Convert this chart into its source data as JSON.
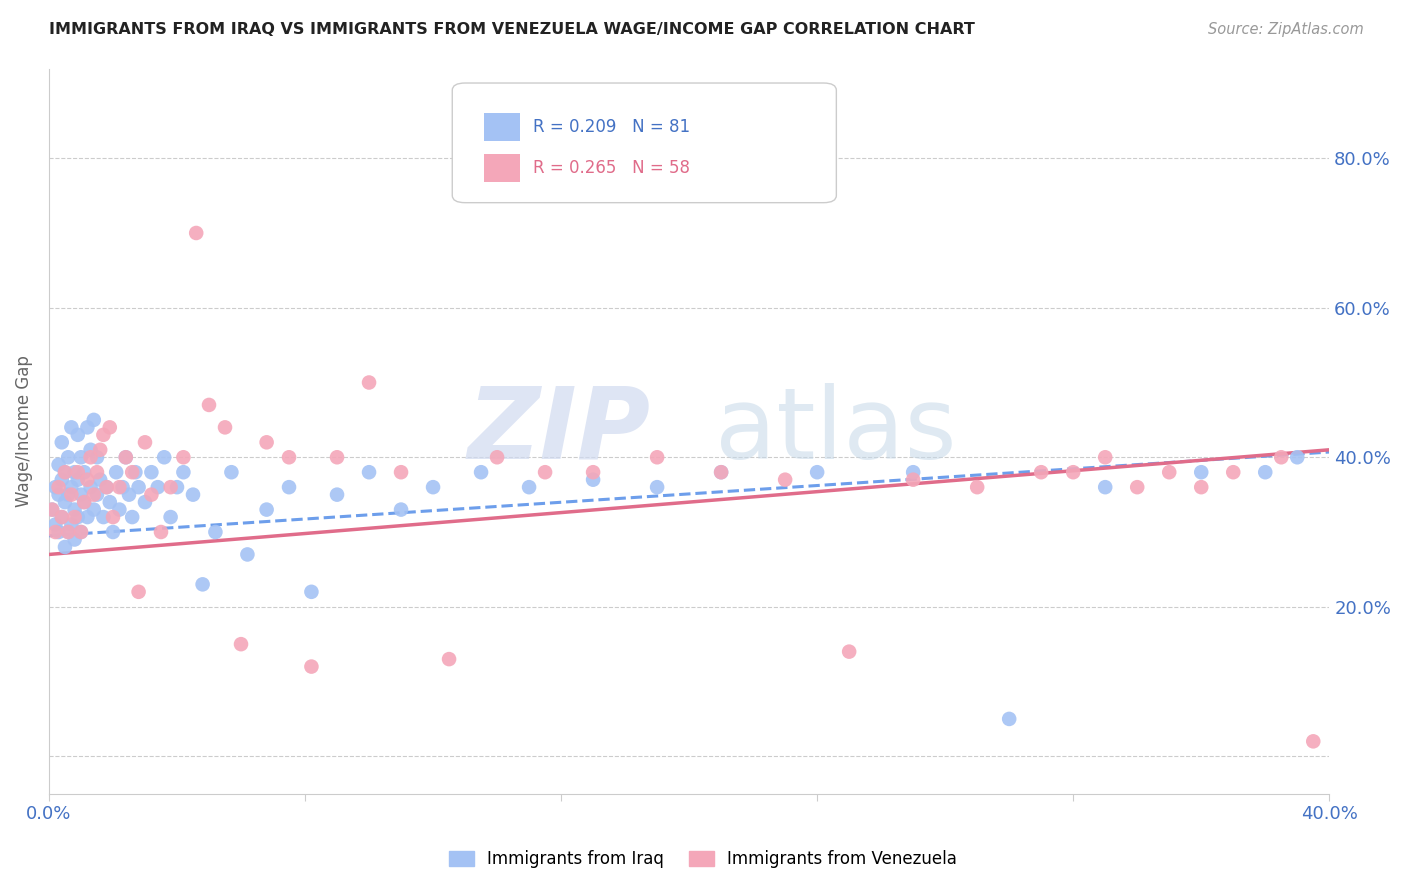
{
  "title": "IMMIGRANTS FROM IRAQ VS IMMIGRANTS FROM VENEZUELA WAGE/INCOME GAP CORRELATION CHART",
  "source": "Source: ZipAtlas.com",
  "ylabel": "Wage/Income Gap",
  "xlim": [
    0.0,
    0.4
  ],
  "ylim": [
    -0.05,
    0.92
  ],
  "xticks": [
    0.0,
    0.08,
    0.16,
    0.24,
    0.32,
    0.4
  ],
  "xticklabels": [
    "0.0%",
    "",
    "",
    "",
    "",
    "40.0%"
  ],
  "yticks": [
    0.0,
    0.2,
    0.4,
    0.6,
    0.8
  ],
  "yticklabels": [
    "",
    "20.0%",
    "40.0%",
    "60.0%",
    "80.0%"
  ],
  "iraq_R": 0.209,
  "iraq_N": 81,
  "venezuela_R": 0.265,
  "venezuela_N": 58,
  "iraq_color": "#a4c2f4",
  "venezuela_color": "#f4a7b9",
  "iraq_line_color": "#6d9eeb",
  "venezuela_line_color": "#e06c8a",
  "ytick_color": "#4472c4",
  "xtick_color": "#4472c4",
  "iraq_x": [
    0.001,
    0.002,
    0.002,
    0.003,
    0.003,
    0.003,
    0.004,
    0.004,
    0.004,
    0.005,
    0.005,
    0.005,
    0.006,
    0.006,
    0.006,
    0.007,
    0.007,
    0.007,
    0.008,
    0.008,
    0.008,
    0.009,
    0.009,
    0.009,
    0.01,
    0.01,
    0.01,
    0.011,
    0.011,
    0.012,
    0.012,
    0.013,
    0.013,
    0.014,
    0.014,
    0.015,
    0.015,
    0.016,
    0.017,
    0.018,
    0.019,
    0.02,
    0.021,
    0.022,
    0.023,
    0.024,
    0.025,
    0.026,
    0.027,
    0.028,
    0.03,
    0.032,
    0.034,
    0.036,
    0.038,
    0.04,
    0.042,
    0.045,
    0.048,
    0.052,
    0.057,
    0.062,
    0.068,
    0.075,
    0.082,
    0.09,
    0.1,
    0.11,
    0.12,
    0.135,
    0.15,
    0.17,
    0.19,
    0.21,
    0.24,
    0.27,
    0.3,
    0.33,
    0.36,
    0.38,
    0.39
  ],
  "iraq_y": [
    0.33,
    0.31,
    0.36,
    0.3,
    0.35,
    0.39,
    0.32,
    0.37,
    0.42,
    0.28,
    0.34,
    0.38,
    0.3,
    0.35,
    0.4,
    0.31,
    0.36,
    0.44,
    0.29,
    0.33,
    0.38,
    0.32,
    0.37,
    0.43,
    0.3,
    0.35,
    0.4,
    0.34,
    0.38,
    0.32,
    0.44,
    0.36,
    0.41,
    0.33,
    0.45,
    0.35,
    0.4,
    0.37,
    0.32,
    0.36,
    0.34,
    0.3,
    0.38,
    0.33,
    0.36,
    0.4,
    0.35,
    0.32,
    0.38,
    0.36,
    0.34,
    0.38,
    0.36,
    0.4,
    0.32,
    0.36,
    0.38,
    0.35,
    0.23,
    0.3,
    0.38,
    0.27,
    0.33,
    0.36,
    0.22,
    0.35,
    0.38,
    0.33,
    0.36,
    0.38,
    0.36,
    0.37,
    0.36,
    0.38,
    0.38,
    0.38,
    0.05,
    0.36,
    0.38,
    0.38,
    0.4
  ],
  "venezuela_x": [
    0.001,
    0.002,
    0.003,
    0.004,
    0.005,
    0.006,
    0.007,
    0.008,
    0.009,
    0.01,
    0.011,
    0.012,
    0.013,
    0.014,
    0.015,
    0.016,
    0.017,
    0.018,
    0.019,
    0.02,
    0.022,
    0.024,
    0.026,
    0.028,
    0.03,
    0.032,
    0.035,
    0.038,
    0.042,
    0.046,
    0.05,
    0.055,
    0.06,
    0.068,
    0.075,
    0.082,
    0.09,
    0.1,
    0.11,
    0.125,
    0.14,
    0.155,
    0.17,
    0.19,
    0.21,
    0.23,
    0.25,
    0.27,
    0.29,
    0.31,
    0.32,
    0.33,
    0.34,
    0.35,
    0.36,
    0.37,
    0.385,
    0.395
  ],
  "venezuela_y": [
    0.33,
    0.3,
    0.36,
    0.32,
    0.38,
    0.3,
    0.35,
    0.32,
    0.38,
    0.3,
    0.34,
    0.37,
    0.4,
    0.35,
    0.38,
    0.41,
    0.43,
    0.36,
    0.44,
    0.32,
    0.36,
    0.4,
    0.38,
    0.22,
    0.42,
    0.35,
    0.3,
    0.36,
    0.4,
    0.7,
    0.47,
    0.44,
    0.15,
    0.42,
    0.4,
    0.12,
    0.4,
    0.5,
    0.38,
    0.13,
    0.4,
    0.38,
    0.38,
    0.4,
    0.38,
    0.37,
    0.14,
    0.37,
    0.36,
    0.38,
    0.38,
    0.4,
    0.36,
    0.38,
    0.36,
    0.38,
    0.4,
    0.02
  ]
}
